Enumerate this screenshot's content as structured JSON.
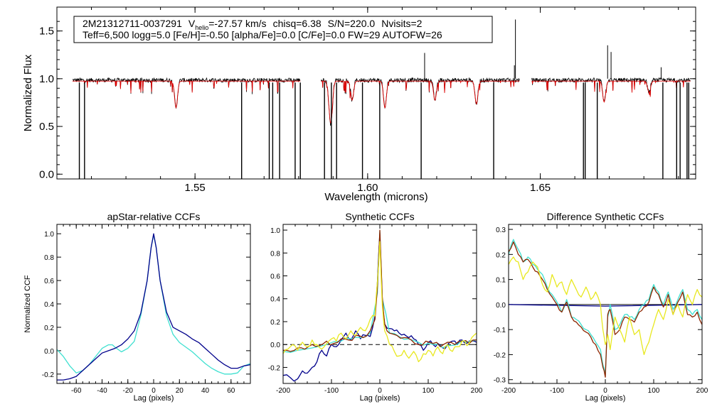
{
  "colors": {
    "black": "#000000",
    "red": "#dd0000",
    "navy": "#00008b",
    "cyan": "#3fe0d0",
    "brown": "#8b2500",
    "yellow": "#e8e820"
  },
  "chart_data": [
    {
      "type": "line",
      "title": "",
      "info_line1": {
        "star": "2M21312711-0037291",
        "v_sym": "V",
        "v_sub": "helio",
        "v_val": "=-27.57 km/s",
        "chisq": "chisq=6.38",
        "snr": "S/N=220.0",
        "nvisits": "Nvisits=2"
      },
      "info_line2": "Teff=6,500 logg=5.0 [Fe/H]=-0.50 [alpha/Fe]=0.0 [C/Fe]=0.0 FW=29 AUTOFW=26",
      "xlabel": "Wavelength (microns)",
      "ylabel": "Normalized Flux",
      "xlim": [
        1.51,
        1.695
      ],
      "ylim": [
        -0.05,
        1.75
      ],
      "xticks": [
        "1.55",
        "1.60",
        "1.65"
      ],
      "yticks": [
        "0.0",
        "0.5",
        "1.0",
        "1.5"
      ],
      "segments": [
        [
          1.5145,
          1.5805
        ],
        [
          1.5865,
          1.644
        ],
        [
          1.6475,
          1.6935
        ]
      ],
      "series": [
        {
          "name": "observed",
          "color": "#000000",
          "continuum": 0.985,
          "deep_lines": [
            1.5165,
            1.518,
            1.5635,
            1.5715,
            1.5725,
            1.5745,
            1.579,
            1.5805,
            1.5875,
            1.5895,
            1.591,
            1.5985,
            1.6035,
            1.6155,
            1.6365,
            1.6625,
            1.663,
            1.6665,
            1.6855,
            1.6895,
            1.6905,
            1.6925,
            1.693
          ],
          "emission_spikes": [
            {
              "x": 1.6165,
              "y": 1.27
            },
            {
              "x": 1.6425,
              "y": 1.14
            },
            {
              "x": 1.685,
              "y": 1.12
            },
            {
              "x": 1.6695,
              "y": 1.35
            },
            {
              "x": 1.6705,
              "y": 1.28
            },
            {
              "x": 1.6428,
              "y": 1.62
            }
          ]
        },
        {
          "name": "model",
          "color": "#dd0000",
          "continuum": 0.975,
          "absorption": [
            {
              "x": 1.5445,
              "d": 0.28
            },
            {
              "x": 1.589,
              "d": 0.22
            },
            {
              "x": 1.5895,
              "d": 0.3
            },
            {
              "x": 1.5955,
              "d": 0.2
            },
            {
              "x": 1.605,
              "d": 0.28
            },
            {
              "x": 1.6195,
              "d": 0.2
            },
            {
              "x": 1.6315,
              "d": 0.24
            },
            {
              "x": 1.6685,
              "d": 0.22
            },
            {
              "x": 1.6815,
              "d": 0.12
            }
          ]
        }
      ]
    },
    {
      "type": "line",
      "title": "apStar-relative CCFs",
      "xlabel": "Lag (pixels)",
      "ylabel": "Normalized CCF",
      "xlim": [
        -75,
        75
      ],
      "ylim": [
        -0.28,
        1.08
      ],
      "xticks": [
        -60,
        -40,
        -20,
        0,
        20,
        40,
        60
      ],
      "yticks": [
        -0.2,
        0.0,
        0.2,
        0.4,
        0.6,
        0.8,
        1.0
      ],
      "series": [
        {
          "name": "cyan",
          "color": "#3fe0d0",
          "x": [
            -75,
            -70,
            -65,
            -60,
            -55,
            -50,
            -45,
            -40,
            -35,
            -32,
            -30,
            -25,
            -20,
            -15,
            -10,
            -5,
            -2,
            0,
            2,
            5,
            10,
            15,
            20,
            25,
            30,
            35,
            40,
            45,
            50,
            55,
            60,
            65,
            70,
            75
          ],
          "y": [
            0.01,
            -0.05,
            -0.13,
            -0.19,
            -0.17,
            -0.12,
            -0.05,
            0.02,
            0.05,
            0.05,
            0.03,
            -0.01,
            0.02,
            0.08,
            0.3,
            0.6,
            0.88,
            0.99,
            0.88,
            0.6,
            0.3,
            0.14,
            0.07,
            0.03,
            -0.01,
            -0.06,
            -0.11,
            -0.15,
            -0.18,
            -0.2,
            -0.2,
            -0.19,
            -0.13,
            -0.11
          ]
        },
        {
          "name": "navy",
          "color": "#00008b",
          "x": [
            -75,
            -70,
            -65,
            -60,
            -55,
            -50,
            -45,
            -40,
            -35,
            -30,
            -25,
            -20,
            -15,
            -10,
            -5,
            -2,
            0,
            2,
            5,
            10,
            15,
            20,
            25,
            30,
            35,
            40,
            45,
            50,
            55,
            60,
            65,
            70,
            75
          ],
          "y": [
            -0.25,
            -0.25,
            -0.24,
            -0.22,
            -0.17,
            -0.12,
            -0.07,
            -0.02,
            0.0,
            0.02,
            0.05,
            0.1,
            0.17,
            0.32,
            0.6,
            0.88,
            1.0,
            0.88,
            0.6,
            0.33,
            0.2,
            0.17,
            0.14,
            0.1,
            0.07,
            0.02,
            -0.03,
            -0.08,
            -0.12,
            -0.15,
            -0.15,
            -0.13,
            -0.12
          ]
        }
      ]
    },
    {
      "type": "line",
      "title": "Synthetic CCFs",
      "xlabel": "Lag (pixels)",
      "ylabel": "",
      "xlim": [
        -200,
        200
      ],
      "ylim": [
        -0.34,
        1.05
      ],
      "xticks": [
        -200,
        -100,
        0,
        100,
        200
      ],
      "yticks": [
        -0.2,
        0.0,
        0.2,
        0.4,
        0.6,
        0.8,
        1.0
      ],
      "reference_line": 0.0,
      "series": [
        {
          "name": "navy",
          "color": "#00008b",
          "x": [
            -200,
            -185,
            -170,
            -160,
            -150,
            -140,
            -130,
            -120,
            -110,
            -100,
            -90,
            -80,
            -70,
            -60,
            -50,
            -40,
            -30,
            -20,
            -10,
            -5,
            0,
            5,
            10,
            20,
            30,
            40,
            50,
            60,
            70,
            80,
            90,
            100,
            110,
            120,
            130,
            140,
            150,
            160,
            170,
            180,
            190,
            200
          ],
          "y": [
            -0.27,
            -0.29,
            -0.3,
            -0.23,
            -0.25,
            -0.2,
            -0.15,
            -0.05,
            -0.1,
            0.0,
            -0.02,
            0.04,
            0.1,
            0.04,
            0.12,
            0.05,
            0.08,
            0.07,
            0.25,
            0.55,
            0.97,
            0.4,
            0.18,
            0.14,
            0.12,
            0.1,
            0.09,
            0.06,
            0.05,
            0.0,
            -0.05,
            0.02,
            0.0,
            0.01,
            -0.03,
            0.0,
            0.03,
            0.0,
            0.04,
            0.01,
            0.03,
            0.02
          ]
        },
        {
          "name": "cyan",
          "color": "#3fe0d0",
          "x": [
            -200,
            -170,
            -140,
            -110,
            -80,
            -60,
            -40,
            -20,
            -5,
            0,
            5,
            20,
            40,
            60,
            80,
            100,
            120,
            140,
            160,
            180,
            200
          ],
          "y": [
            -0.06,
            -0.05,
            -0.03,
            0.0,
            0.03,
            0.05,
            0.06,
            0.1,
            0.45,
            0.99,
            0.4,
            0.1,
            0.07,
            0.05,
            0.02,
            0.01,
            0.0,
            -0.01,
            0.0,
            0.02,
            0.04
          ]
        },
        {
          "name": "brown",
          "color": "#8b2500",
          "x": [
            -200,
            -185,
            -170,
            -155,
            -140,
            -125,
            -110,
            -95,
            -80,
            -65,
            -50,
            -35,
            -20,
            -10,
            -5,
            0,
            5,
            10,
            20,
            35,
            50,
            65,
            80,
            95,
            110,
            125,
            140,
            155,
            170,
            185,
            200
          ],
          "y": [
            -0.05,
            -0.06,
            -0.03,
            -0.04,
            0.0,
            -0.01,
            0.03,
            0.01,
            0.05,
            0.04,
            0.08,
            0.06,
            0.12,
            0.22,
            0.5,
            1.0,
            0.42,
            0.18,
            0.1,
            0.08,
            0.06,
            0.04,
            0.0,
            0.03,
            0.01,
            -0.02,
            0.02,
            0.0,
            0.03,
            0.01,
            0.04
          ]
        },
        {
          "name": "yellow",
          "color": "#e8e820",
          "x": [
            -200,
            -190,
            -180,
            -170,
            -160,
            -150,
            -140,
            -130,
            -120,
            -110,
            -100,
            -90,
            -80,
            -70,
            -60,
            -50,
            -40,
            -30,
            -20,
            -10,
            -5,
            0,
            5,
            10,
            20,
            30,
            40,
            50,
            60,
            70,
            80,
            90,
            100,
            110,
            120,
            130,
            140,
            150,
            160,
            170,
            180,
            190,
            200
          ],
          "y": [
            -0.08,
            -0.04,
            0.0,
            -0.05,
            0.02,
            -0.02,
            0.04,
            0.0,
            -0.04,
            0.01,
            0.05,
            0.03,
            0.1,
            0.05,
            0.12,
            0.08,
            0.15,
            0.12,
            0.22,
            0.25,
            0.55,
            0.9,
            0.35,
            0.12,
            0.0,
            -0.06,
            -0.1,
            -0.05,
            -0.12,
            -0.06,
            -0.15,
            -0.08,
            -0.05,
            -0.1,
            -0.02,
            -0.08,
            0.0,
            -0.06,
            -0.02,
            0.03,
            -0.01,
            0.06,
            0.1
          ]
        }
      ]
    },
    {
      "type": "line",
      "title": "Difference Synthetic CCFs",
      "xlabel": "Lag (pixels)",
      "ylabel": "",
      "xlim": [
        -200,
        200
      ],
      "ylim": [
        -0.315,
        0.32
      ],
      "xticks": [
        -200,
        -100,
        0,
        100,
        200
      ],
      "yticks": [
        -0.3,
        -0.2,
        -0.1,
        0.0,
        0.1,
        0.2,
        0.3
      ],
      "reference_line": 0.0,
      "series": [
        {
          "name": "navy",
          "color": "#00008b",
          "x": [
            -200,
            200
          ],
          "y": [
            0.0,
            0.0
          ]
        },
        {
          "name": "cyan",
          "color": "#3fe0d0",
          "x": [
            -200,
            -190,
            -180,
            -170,
            -160,
            -150,
            -140,
            -130,
            -120,
            -110,
            -100,
            -90,
            -80,
            -70,
            -60,
            -50,
            -40,
            -30,
            -20,
            -10,
            -5,
            0,
            5,
            10,
            20,
            30,
            40,
            50,
            60,
            70,
            80,
            90,
            100,
            110,
            120,
            130,
            140,
            150,
            160,
            170,
            180,
            190,
            200
          ],
          "y": [
            0.2,
            0.26,
            0.22,
            0.17,
            0.19,
            0.16,
            0.14,
            0.12,
            0.07,
            0.04,
            0.01,
            -0.03,
            0.02,
            -0.05,
            -0.06,
            -0.08,
            -0.1,
            -0.12,
            -0.15,
            -0.18,
            -0.24,
            -0.28,
            -0.05,
            0.0,
            -0.1,
            -0.08,
            -0.04,
            -0.05,
            -0.06,
            -0.02,
            0.0,
            0.02,
            0.08,
            0.05,
            0.0,
            0.05,
            -0.02,
            0.02,
            0.06,
            -0.02,
            -0.04,
            -0.02,
            -0.06
          ]
        },
        {
          "name": "brown",
          "color": "#8b2500",
          "x": [
            -200,
            -190,
            -180,
            -170,
            -160,
            -150,
            -140,
            -130,
            -120,
            -110,
            -100,
            -90,
            -80,
            -70,
            -60,
            -50,
            -40,
            -30,
            -20,
            -10,
            -5,
            0,
            5,
            10,
            20,
            30,
            40,
            50,
            60,
            70,
            80,
            90,
            100,
            110,
            120,
            130,
            140,
            150,
            160,
            170,
            180,
            190,
            200
          ],
          "y": [
            0.21,
            0.25,
            0.2,
            0.17,
            0.18,
            0.15,
            0.13,
            0.1,
            0.06,
            0.03,
            0.0,
            -0.03,
            0.01,
            -0.05,
            -0.07,
            -0.09,
            -0.11,
            -0.13,
            -0.16,
            -0.2,
            -0.25,
            -0.29,
            -0.04,
            -0.02,
            -0.12,
            -0.1,
            -0.05,
            -0.06,
            -0.07,
            -0.03,
            -0.01,
            0.01,
            0.07,
            0.04,
            -0.01,
            0.04,
            -0.04,
            0.01,
            0.05,
            -0.04,
            -0.05,
            -0.03,
            -0.08
          ]
        },
        {
          "name": "yellow",
          "color": "#e8e820",
          "x": [
            -200,
            -190,
            -180,
            -170,
            -160,
            -150,
            -140,
            -130,
            -120,
            -110,
            -100,
            -90,
            -80,
            -70,
            -60,
            -50,
            -40,
            -30,
            -20,
            -10,
            -5,
            0,
            5,
            10,
            20,
            30,
            40,
            50,
            60,
            70,
            80,
            90,
            100,
            110,
            120,
            130,
            140,
            150,
            160,
            170,
            180,
            190,
            200
          ],
          "y": [
            0.16,
            0.19,
            0.17,
            0.1,
            0.13,
            0.17,
            0.15,
            0.08,
            0.05,
            0.12,
            0.07,
            0.09,
            0.04,
            0.1,
            0.06,
            0.03,
            0.07,
            0.02,
            0.05,
            0.0,
            -0.1,
            -0.16,
            -0.12,
            -0.18,
            -0.05,
            -0.1,
            -0.15,
            -0.05,
            -0.12,
            -0.1,
            -0.2,
            -0.15,
            -0.08,
            -0.02,
            -0.06,
            0.02,
            -0.04,
            0.0,
            -0.05,
            0.04,
            0.0,
            0.06,
            0.03
          ]
        }
      ]
    }
  ]
}
